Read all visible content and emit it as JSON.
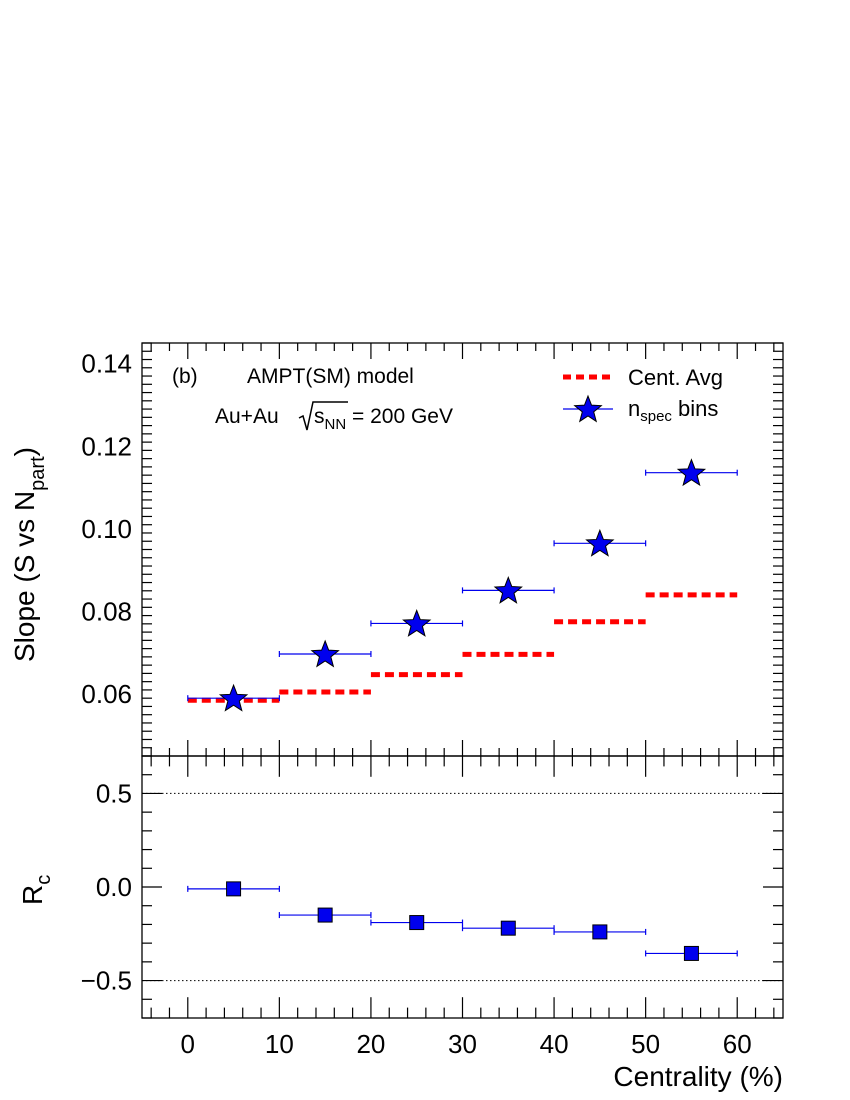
{
  "chart_data": [
    {
      "panel": "top",
      "type": "scatter",
      "ylabel": "Slope (S vs N",
      "ylabel_sub": "part",
      "ylabel_tail": ")",
      "xlim": [
        -5,
        65
      ],
      "ylim": [
        0.045,
        0.145
      ],
      "yticks": [
        0.06,
        0.08,
        0.1,
        0.12,
        0.14
      ],
      "ytick_labels": [
        "0.06",
        "0.08",
        "0.10",
        "0.12",
        "0.14"
      ],
      "annotations": {
        "panel_label": "(b)",
        "model": "AMPT(SM) model",
        "system_pre": "Au+Au ",
        "system_s": "s",
        "system_sub": "NN",
        "system_post": " = 200 GeV"
      },
      "legend": [
        {
          "label": "Cent. Avg",
          "color": "#ff0000",
          "style": "dashed-line"
        },
        {
          "label_main": "n",
          "label_sub": "spec",
          "label_tail": " bins",
          "color": "#0000ee",
          "style": "star-marker"
        }
      ],
      "legend_position": "top-right",
      "series": [
        {
          "name": "Cent. Avg",
          "color": "#ff0000",
          "x_low": [
            0,
            10,
            20,
            30,
            40,
            50
          ],
          "x_high": [
            10,
            20,
            30,
            40,
            50,
            60
          ],
          "values": [
            0.0585,
            0.0605,
            0.0647,
            0.0696,
            0.0775,
            0.084
          ]
        },
        {
          "name": "n_spec bins",
          "color": "#0000ee",
          "x": [
            5,
            15,
            25,
            35,
            45,
            55
          ],
          "x_err": [
            5,
            5,
            5,
            5,
            5,
            5
          ],
          "values": [
            0.059,
            0.0697,
            0.0771,
            0.0851,
            0.0965,
            0.1136
          ]
        }
      ]
    },
    {
      "panel": "bottom",
      "type": "scatter",
      "xlabel": "Centrality (%)",
      "ylabel": "R",
      "ylabel_sub": "c",
      "xlim": [
        -5,
        65
      ],
      "ylim": [
        -0.7,
        0.7
      ],
      "xticks": [
        0,
        10,
        20,
        30,
        40,
        50,
        60
      ],
      "xtick_labels": [
        "0",
        "10",
        "20",
        "30",
        "40",
        "50",
        "60"
      ],
      "yticks": [
        -0.5,
        0.0,
        0.5
      ],
      "ytick_labels": [
        "−0.5",
        "0.0",
        "0.5"
      ],
      "reference_lines": [
        0.5,
        -0.5
      ],
      "series": [
        {
          "name": "R_c",
          "color": "#0000ee",
          "x": [
            5,
            15,
            25,
            35,
            45,
            55
          ],
          "x_err": [
            5,
            5,
            5,
            5,
            5,
            5
          ],
          "values": [
            -0.01,
            -0.15,
            -0.19,
            -0.22,
            -0.24,
            -0.355
          ]
        }
      ]
    }
  ]
}
